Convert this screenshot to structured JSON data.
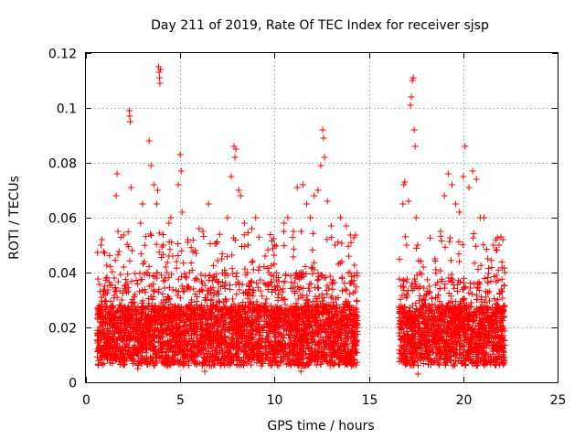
{
  "chart_data": {
    "type": "scatter",
    "title": "Day 211 of 2019, Rate Of TEC Index for receiver sjsp",
    "xlabel": "GPS time / hours",
    "ylabel": "ROTI / TECUs",
    "xlim": [
      0,
      25
    ],
    "ylim": [
      0,
      0.12
    ],
    "xticks": [
      0,
      5,
      10,
      15,
      20,
      25
    ],
    "xtick_labels": [
      "0",
      "5",
      "10",
      "15",
      "20",
      "25"
    ],
    "yticks": [
      0,
      0.02,
      0.04,
      0.06,
      0.08,
      0.1,
      0.12
    ],
    "ytick_labels": [
      "0",
      "0.02",
      "0.04",
      "0.06",
      "0.08",
      "0.1",
      "0.12"
    ],
    "grid": true,
    "marker": "+",
    "color": "#ff0000",
    "coverage_intervals_hours": [
      [
        0.6,
        14.4
      ],
      [
        16.6,
        22.2
      ]
    ],
    "series": [
      {
        "name": "ROTI",
        "points": [
          [
            0.7,
            0.012
          ],
          [
            0.75,
            0.025
          ],
          [
            0.8,
            0.05
          ],
          [
            0.85,
            0.052
          ],
          [
            0.9,
            0.018
          ],
          [
            1.0,
            0.035
          ],
          [
            1.1,
            0.009
          ],
          [
            1.3,
            0.022
          ],
          [
            1.5,
            0.038
          ],
          [
            1.6,
            0.068
          ],
          [
            1.65,
            0.076
          ],
          [
            1.7,
            0.055
          ],
          [
            1.9,
            0.03
          ],
          [
            2.0,
            0.042
          ],
          [
            2.2,
            0.02
          ],
          [
            2.3,
            0.099
          ],
          [
            2.32,
            0.097
          ],
          [
            2.35,
            0.095
          ],
          [
            2.4,
            0.071
          ],
          [
            2.45,
            0.048
          ],
          [
            2.6,
            0.032
          ],
          [
            2.75,
            0.005
          ],
          [
            2.9,
            0.058
          ],
          [
            3.0,
            0.065
          ],
          [
            3.1,
            0.044
          ],
          [
            3.2,
            0.04
          ],
          [
            3.35,
            0.088
          ],
          [
            3.45,
            0.079
          ],
          [
            3.6,
            0.072
          ],
          [
            3.75,
            0.065
          ],
          [
            3.8,
            0.07
          ],
          [
            3.85,
            0.115
          ],
          [
            3.88,
            0.113
          ],
          [
            3.9,
            0.111
          ],
          [
            3.92,
            0.109
          ],
          [
            3.95,
            0.114
          ],
          [
            4.1,
            0.05
          ],
          [
            4.2,
            0.038
          ],
          [
            4.4,
            0.058
          ],
          [
            4.5,
            0.06
          ],
          [
            4.6,
            0.046
          ],
          [
            4.8,
            0.044
          ],
          [
            4.9,
            0.072
          ],
          [
            5.0,
            0.083
          ],
          [
            5.05,
            0.077
          ],
          [
            5.1,
            0.062
          ],
          [
            5.2,
            0.034
          ],
          [
            5.4,
            0.052
          ],
          [
            5.6,
            0.03
          ],
          [
            5.8,
            0.048
          ],
          [
            6.0,
            0.056
          ],
          [
            6.2,
            0.055
          ],
          [
            6.5,
            0.065
          ],
          [
            6.7,
            0.037
          ],
          [
            6.9,
            0.022
          ],
          [
            7.2,
            0.045
          ],
          [
            7.5,
            0.06
          ],
          [
            7.7,
            0.075
          ],
          [
            7.85,
            0.086
          ],
          [
            7.9,
            0.082
          ],
          [
            7.95,
            0.085
          ],
          [
            8.1,
            0.07
          ],
          [
            8.2,
            0.068
          ],
          [
            8.4,
            0.058
          ],
          [
            8.6,
            0.05
          ],
          [
            8.8,
            0.056
          ],
          [
            9.0,
            0.06
          ],
          [
            9.2,
            0.042
          ],
          [
            9.5,
            0.046
          ],
          [
            9.7,
            0.04
          ],
          [
            10.0,
            0.05
          ],
          [
            10.2,
            0.032
          ],
          [
            10.5,
            0.058
          ],
          [
            10.7,
            0.06
          ],
          [
            11.0,
            0.055
          ],
          [
            11.2,
            0.071
          ],
          [
            11.5,
            0.072
          ],
          [
            11.7,
            0.065
          ],
          [
            11.9,
            0.06
          ],
          [
            12.1,
            0.068
          ],
          [
            12.3,
            0.07
          ],
          [
            12.45,
            0.079
          ],
          [
            12.55,
            0.092
          ],
          [
            12.6,
            0.089
          ],
          [
            12.65,
            0.082
          ],
          [
            12.8,
            0.066
          ],
          [
            13.0,
            0.057
          ],
          [
            13.2,
            0.05
          ],
          [
            13.5,
            0.06
          ],
          [
            13.8,
            0.057
          ],
          [
            14.0,
            0.04
          ],
          [
            14.2,
            0.025
          ],
          [
            14.4,
            0.02
          ],
          [
            16.6,
            0.018
          ],
          [
            16.7,
            0.035
          ],
          [
            16.8,
            0.065
          ],
          [
            16.85,
            0.072
          ],
          [
            16.9,
            0.073
          ],
          [
            17.0,
            0.05
          ],
          [
            17.1,
            0.066
          ],
          [
            17.2,
            0.101
          ],
          [
            17.25,
            0.104
          ],
          [
            17.3,
            0.11
          ],
          [
            17.35,
            0.111
          ],
          [
            17.4,
            0.092
          ],
          [
            17.45,
            0.086
          ],
          [
            17.5,
            0.06
          ],
          [
            17.7,
            0.04
          ],
          [
            18.0,
            0.03
          ],
          [
            18.2,
            0.035
          ],
          [
            18.5,
            0.045
          ],
          [
            18.8,
            0.055
          ],
          [
            19.0,
            0.068
          ],
          [
            19.2,
            0.076
          ],
          [
            19.4,
            0.072
          ],
          [
            19.6,
            0.065
          ],
          [
            19.8,
            0.062
          ],
          [
            20.0,
            0.075
          ],
          [
            20.1,
            0.086
          ],
          [
            20.3,
            0.071
          ],
          [
            20.5,
            0.077
          ],
          [
            20.7,
            0.074
          ],
          [
            20.9,
            0.06
          ],
          [
            21.1,
            0.06
          ],
          [
            21.3,
            0.045
          ],
          [
            21.6,
            0.05
          ],
          [
            21.9,
            0.05
          ],
          [
            22.0,
            0.053
          ],
          [
            22.1,
            0.052
          ],
          [
            22.2,
            0.04
          ],
          [
            4.3,
            0.006
          ],
          [
            6.3,
            0.004
          ],
          [
            11.4,
            0.004
          ],
          [
            17.6,
            0.003
          ]
        ]
      }
    ]
  }
}
